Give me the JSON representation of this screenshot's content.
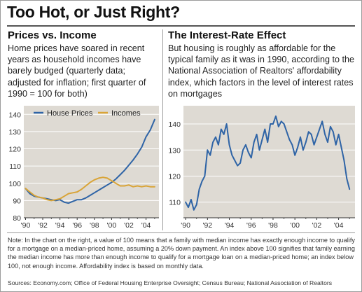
{
  "title": "Too Hot, or Just Right?",
  "left_panel": {
    "subtitle": "Prices vs. Income",
    "description": "Home prices have soared in recent years as household incomes have barely budged (quarterly data; adjusted for inflation; first quarter of 1990 = 100 for both)"
  },
  "right_panel": {
    "subtitle": "The Interest-Rate Effect",
    "description": "But housing is roughly as affordable for the typical family as it was in 1990, according to the National Association of Realtors' affordability index, which factors in the level of interest rates on mortgages"
  },
  "note": "Note: In the chart on the right, a value of 100 means that a family with median income has exactly enough income to qualify for a mortgage on a median-priced home, assuming a 20% down payment. An index above 100 signifies that family earning the median income has more than enough income to qualify for a mortgage loan on a median-priced home; an index below 100, not enough income. Affordability index is based on monthly data.",
  "sources": "Sources: Economy.com; Office of Federal Housing Enterprise Oversight; Census Bureau; National Association of Realtors",
  "chart_data": [
    {
      "type": "line",
      "xlim": [
        1989.8,
        2005.5
      ],
      "ylim": [
        80,
        145
      ],
      "yticks": [
        80,
        90,
        100,
        110,
        120,
        130,
        140
      ],
      "xticks": [
        {
          "year": 1990,
          "label": "'90"
        },
        {
          "year": 1992,
          "label": "'92"
        },
        {
          "year": 1994,
          "label": "'94"
        },
        {
          "year": 1996,
          "label": "'96"
        },
        {
          "year": 1998,
          "label": "'98"
        },
        {
          "year": 2000,
          "label": "'00"
        },
        {
          "year": 2002,
          "label": "'02"
        },
        {
          "year": 2004,
          "label": "'04"
        }
      ],
      "grid": true,
      "legend": "top-left",
      "series": [
        {
          "name": "House Prices",
          "color": "#2f64a6",
          "x": [
            1990.0,
            1990.5,
            1991.0,
            1991.5,
            1992.0,
            1992.5,
            1993.0,
            1993.5,
            1994.0,
            1994.5,
            1995.0,
            1995.5,
            1996.0,
            1996.5,
            1997.0,
            1997.5,
            1998.0,
            1998.5,
            1999.0,
            1999.5,
            2000.0,
            2000.5,
            2001.0,
            2001.5,
            2002.0,
            2002.5,
            2003.0,
            2003.5,
            2004.0,
            2004.5,
            2005.0
          ],
          "y": [
            97,
            94,
            92.5,
            92,
            91.5,
            91,
            90.5,
            90,
            90.5,
            89,
            88.5,
            89.5,
            90.5,
            90.5,
            91.5,
            93,
            94.5,
            96,
            97.5,
            99,
            100.5,
            102.5,
            105,
            107.5,
            110.5,
            113.5,
            117,
            121,
            127,
            131,
            137
          ]
        },
        {
          "name": "Incomes",
          "color": "#d9a437",
          "x": [
            1990.0,
            1990.5,
            1991.0,
            1991.5,
            1992.0,
            1992.5,
            1993.0,
            1993.5,
            1994.0,
            1994.5,
            1995.0,
            1995.5,
            1996.0,
            1996.5,
            1997.0,
            1997.5,
            1998.0,
            1998.5,
            1999.0,
            1999.5,
            2000.0,
            2000.5,
            2001.0,
            2001.5,
            2002.0,
            2002.5,
            2003.0,
            2003.5,
            2004.0,
            2004.5,
            2005.0
          ],
          "y": [
            97,
            95,
            93,
            92,
            91.5,
            90.5,
            90,
            90.5,
            91,
            92.5,
            94,
            94.5,
            95,
            96.5,
            98.5,
            100.5,
            102,
            103,
            103.5,
            103,
            101.5,
            100,
            98.5,
            98.5,
            99,
            98,
            98.5,
            98,
            98.5,
            98,
            98
          ]
        }
      ]
    },
    {
      "type": "line",
      "xlim": [
        1989.8,
        2005.5
      ],
      "ylim": [
        104,
        147
      ],
      "yticks": [
        110,
        120,
        130,
        140
      ],
      "xticks": [
        {
          "year": 1990,
          "label": "'90"
        },
        {
          "year": 1992,
          "label": "'92"
        },
        {
          "year": 1994,
          "label": "'94"
        },
        {
          "year": 1996,
          "label": "'96"
        },
        {
          "year": 1998,
          "label": "'98"
        },
        {
          "year": 2000,
          "label": "'00"
        },
        {
          "year": 2002,
          "label": "'02"
        },
        {
          "year": 2004,
          "label": "'04"
        }
      ],
      "grid": true,
      "series": [
        {
          "color": "#2f64a6",
          "x": [
            1990.0,
            1990.25,
            1990.5,
            1990.75,
            1991.0,
            1991.25,
            1991.5,
            1991.75,
            1992.0,
            1992.25,
            1992.5,
            1992.75,
            1993.0,
            1993.25,
            1993.5,
            1993.75,
            1994.0,
            1994.25,
            1994.5,
            1994.75,
            1995.0,
            1995.25,
            1995.5,
            1995.75,
            1996.0,
            1996.25,
            1996.5,
            1996.75,
            1997.0,
            1997.25,
            1997.5,
            1997.75,
            1998.0,
            1998.25,
            1998.5,
            1998.75,
            1999.0,
            1999.25,
            1999.5,
            1999.75,
            2000.0,
            2000.25,
            2000.5,
            2000.75,
            2001.0,
            2001.25,
            2001.5,
            2001.75,
            2002.0,
            2002.25,
            2002.5,
            2002.75,
            2003.0,
            2003.25,
            2003.5,
            2003.75,
            2004.0,
            2004.25,
            2004.5,
            2004.75,
            2005.0
          ],
          "y": [
            110,
            108,
            111,
            107,
            109,
            115,
            118,
            120,
            130,
            128,
            133,
            135,
            132,
            138,
            136,
            140,
            132,
            128,
            126,
            124,
            125,
            130,
            132,
            129,
            127,
            133,
            136,
            130,
            134,
            138,
            133,
            140,
            140,
            143,
            139,
            141,
            140,
            137,
            134,
            132,
            128,
            131,
            135,
            130,
            133,
            137,
            136,
            132,
            135,
            138,
            141,
            136,
            133,
            139,
            137,
            132,
            136,
            131,
            126,
            119,
            115
          ]
        }
      ]
    }
  ]
}
